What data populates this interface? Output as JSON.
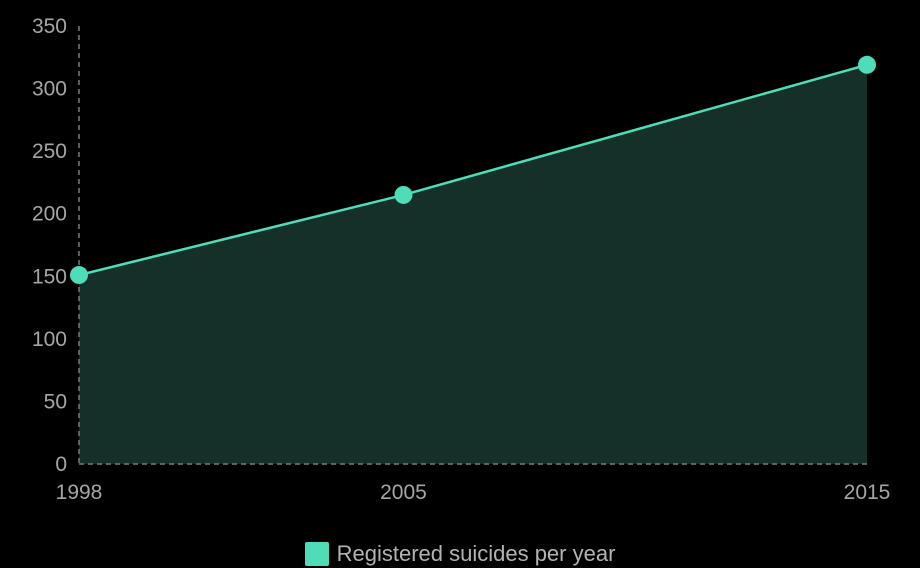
{
  "chart_data": {
    "type": "area",
    "title": "",
    "xlabel": "",
    "ylabel": "",
    "x": [
      "1998",
      "2005",
      "2015"
    ],
    "series": [
      {
        "name": "Registered suicides per year",
        "values": [
          151,
          215,
          319
        ]
      }
    ],
    "ylim": [
      0,
      350
    ],
    "yticks": [
      0,
      50,
      100,
      150,
      200,
      250,
      300,
      350
    ],
    "grid": false,
    "legend_position": "bottom",
    "colors": {
      "line": "#4fdcb8",
      "area": "#143029",
      "axis": "#7a7a7a",
      "tick_text": "#a6a6a6",
      "background": "#000000"
    }
  },
  "legend": {
    "label": "Registered suicides per year"
  }
}
